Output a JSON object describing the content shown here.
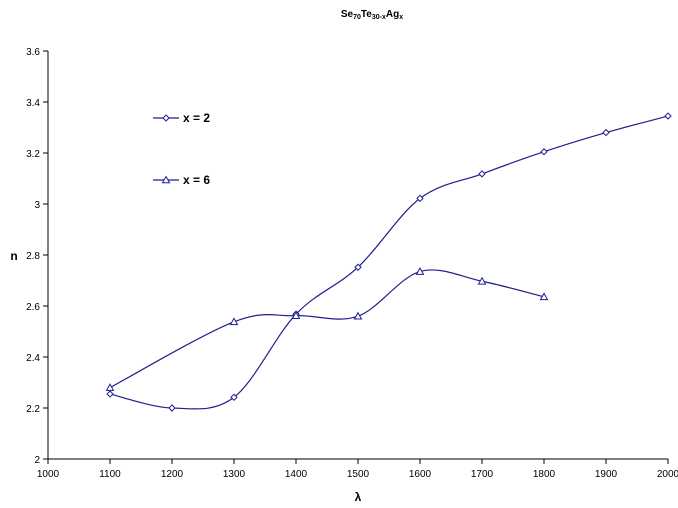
{
  "chart_data": {
    "type": "line",
    "title": {
      "parts": [
        {
          "text": "Se",
          "sub": false
        },
        {
          "text": "70",
          "sub": true
        },
        {
          "text": "Te",
          "sub": false
        },
        {
          "text": "30-x",
          "sub": true
        },
        {
          "text": "Ag",
          "sub": false
        },
        {
          "text": "x",
          "sub": true
        }
      ]
    },
    "xlabel": "λ",
    "ylabel": "n",
    "xlim": [
      1000,
      2000
    ],
    "ylim": [
      2,
      3.6
    ],
    "xticks": [
      "1000",
      "1100",
      "1200",
      "1300",
      "1400",
      "1500",
      "1600",
      "1700",
      "1800",
      "1900",
      "2000"
    ],
    "yticks": [
      "2",
      "2.2",
      "2.4",
      "2.6",
      "2.8",
      "3",
      "3.2",
      "3.4",
      "3.6"
    ],
    "grid": false,
    "legend_position": "upper-left",
    "line_color": "#1f1f8f",
    "smoothed": true,
    "series": [
      {
        "name": "x = 2",
        "marker": "diamond",
        "x": [
          1100,
          1200,
          1300,
          1400,
          1500,
          1600,
          1700,
          1800,
          1900,
          2000
        ],
        "y": [
          2.255,
          2.2,
          2.242,
          2.568,
          2.752,
          3.022,
          3.118,
          3.205,
          3.28,
          3.345
        ]
      },
      {
        "name": "x = 6",
        "marker": "triangle",
        "x": [
          1100,
          1300,
          1400,
          1500,
          1600,
          1700,
          1800
        ],
        "y": [
          2.28,
          2.538,
          2.562,
          2.56,
          2.735,
          2.697,
          2.636
        ]
      }
    ]
  }
}
